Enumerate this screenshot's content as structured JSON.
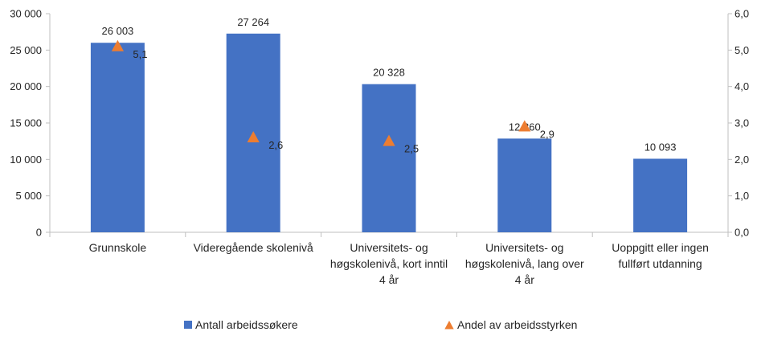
{
  "chart_data": {
    "type": "bar",
    "categories": [
      [
        "Grunnskole"
      ],
      [
        "Videregående skolenivå"
      ],
      [
        "Universitets- og",
        "høgskolenivå, kort inntil",
        "4 år"
      ],
      [
        "Universitets- og",
        "høgskolenivå, lang over",
        "4 år"
      ],
      [
        "Uoppgitt eller ingen",
        "fullført utdanning"
      ]
    ],
    "series": [
      {
        "name": "Antall arbeidssøkere",
        "type": "bar",
        "axis": "left",
        "color": "#4472C4",
        "values": [
          26003,
          27264,
          20328,
          12860,
          10093
        ],
        "labels": [
          "26 003",
          "27 264",
          "20 328",
          "12 860",
          "10 093"
        ]
      },
      {
        "name": "Andel av arbeidsstyrken",
        "type": "scatter",
        "marker": "triangle",
        "axis": "right",
        "color": "#ED7D31",
        "values": [
          5.1,
          2.6,
          2.5,
          2.9,
          null
        ],
        "labels": [
          "5,1",
          "2,6",
          "2,5",
          "2,9",
          ""
        ]
      }
    ],
    "y_left": {
      "range": [
        0,
        30000
      ],
      "ticks": [
        "0",
        "5 000",
        "10 000",
        "15 000",
        "20 000",
        "25 000",
        "30 000"
      ]
    },
    "y_right": {
      "range": [
        0,
        6
      ],
      "ticks": [
        "0,0",
        "1,0",
        "2,0",
        "3,0",
        "4,0",
        "5,0",
        "6,0"
      ]
    },
    "grid": false,
    "legend": "bottom"
  }
}
